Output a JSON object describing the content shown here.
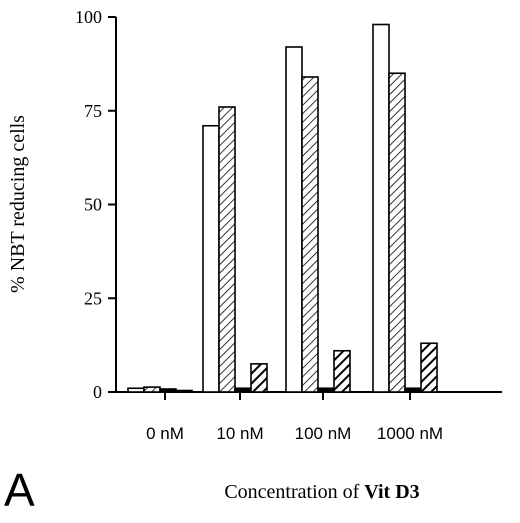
{
  "panel_label": "A",
  "chart_data": {
    "type": "bar",
    "categories": [
      "0 nM",
      "10 nM",
      "100 nM",
      "1000 nM"
    ],
    "ylabel": "% NBT reducing cells",
    "xlabel": {
      "prefix": "Concentration of ",
      "bold": "Vit D3"
    },
    "ylim": [
      0,
      100
    ],
    "yticks": [
      0,
      25,
      50,
      75,
      100
    ],
    "grid": false,
    "legend": "none",
    "series": [
      {
        "pattern": "open",
        "values": [
          1,
          71,
          92,
          98
        ]
      },
      {
        "pattern": "fine-hatch",
        "values": [
          1.3,
          76,
          84,
          85
        ]
      },
      {
        "pattern": "solid",
        "values": [
          0.8,
          1,
          1,
          1
        ]
      },
      {
        "pattern": "bold-hatch",
        "values": [
          0.4,
          7.5,
          11,
          13
        ]
      }
    ]
  }
}
